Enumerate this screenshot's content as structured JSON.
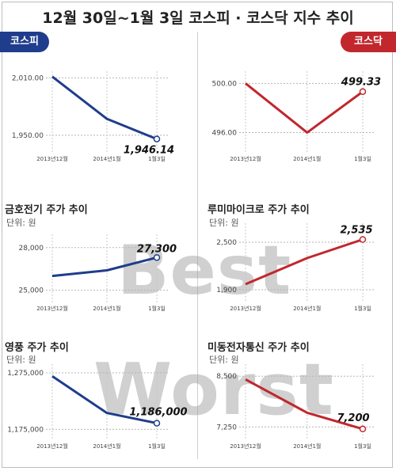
{
  "page": {
    "title": "12월 30일~1월 3일 코스피 · 코스닥 지수 추이",
    "tag_left": "코스피",
    "tag_right": "코스닥",
    "watermark_best": "Best",
    "watermark_worst": "Worst"
  },
  "colors": {
    "blue": "#1f3d8c",
    "red": "#c1272d"
  },
  "chart_data": [
    {
      "id": "kospi",
      "type": "line",
      "title": "",
      "unit": "",
      "color": "blue",
      "categories": [
        "2013년12월",
        "2014년1월",
        "1월3일"
      ],
      "values": [
        2011.34,
        1967.19,
        1946.14
      ],
      "ylim": [
        1940,
        2012
      ],
      "yticks": [
        2010,
        1950
      ],
      "ytick_labels": [
        "2,010.00",
        "1,950.00"
      ],
      "end_label": "1,946.14"
    },
    {
      "id": "kosdaq",
      "type": "line",
      "title": "",
      "unit": "",
      "color": "red",
      "categories": [
        "2013년12월",
        "2014년1월",
        "1월3일"
      ],
      "values": [
        500.0,
        496.0,
        499.33
      ],
      "ylim": [
        495.0,
        500.6
      ],
      "yticks": [
        500,
        496
      ],
      "ytick_labels": [
        "500.00",
        "496.00"
      ],
      "end_label": "499.33"
    },
    {
      "id": "kumho",
      "type": "line",
      "title": "금호전기 주가 추이",
      "unit": "단위: 원",
      "color": "blue",
      "categories": [
        "2013년12월",
        "2014년1월",
        "1월3일"
      ],
      "values": [
        26000,
        26400,
        27300
      ],
      "ylim": [
        24700,
        28600
      ],
      "yticks": [
        28000,
        25000
      ],
      "ytick_labels": [
        "28,000",
        "25,000"
      ],
      "end_label": "27,300"
    },
    {
      "id": "lumimicro",
      "type": "line",
      "title": "루미마이크로 주가 추이",
      "unit": "단위: 원",
      "color": "red",
      "categories": [
        "2013년12월",
        "2014년1월",
        "1월3일"
      ],
      "values": [
        1970,
        2300,
        2535
      ],
      "ylim": [
        1840,
        2680
      ],
      "yticks": [
        2500,
        1900
      ],
      "ytick_labels": [
        "2,500",
        "1,900"
      ],
      "end_label": "2,535"
    },
    {
      "id": "youngpoong",
      "type": "line",
      "title": "영풍 주가 추이",
      "unit": "단위: 원",
      "color": "blue",
      "categories": [
        "2013년12월",
        "2014년1월",
        "1월3일"
      ],
      "values": [
        1269000,
        1204000,
        1186000
      ],
      "ylim": [
        1170000,
        1282000
      ],
      "yticks": [
        1275000,
        1175000
      ],
      "ytick_labels": [
        "1,275,000",
        "1,175,000"
      ],
      "end_label": "1,186,000"
    },
    {
      "id": "midong",
      "type": "line",
      "title": "미동전자통신 주가 추이",
      "unit": "단위: 원",
      "color": "red",
      "categories": [
        "2013년12월",
        "2014년1월",
        "1월3일"
      ],
      "values": [
        8420,
        7600,
        7200
      ],
      "ylim": [
        7120,
        8680
      ],
      "yticks": [
        8500,
        7250
      ],
      "ytick_labels": [
        "8,500",
        "7,250"
      ],
      "end_label": "7,200"
    }
  ]
}
